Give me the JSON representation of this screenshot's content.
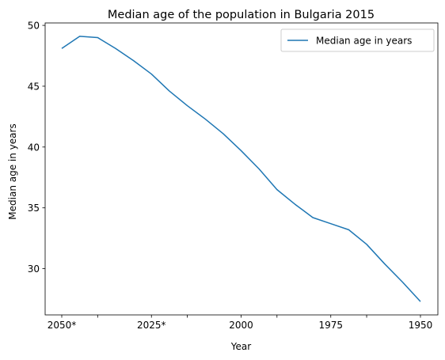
{
  "chart_data": {
    "type": "line",
    "title": "Median age of the population in Bulgaria 2015",
    "xlabel": "Year",
    "ylabel": "Median age in years",
    "x_direction": "reversed",
    "categories": [
      "2050*",
      "2045*",
      "2040*",
      "2035*",
      "2030*",
      "2025*",
      "2020*",
      "2015",
      "2010",
      "2005",
      "2000",
      "1995",
      "1990",
      "1985",
      "1980",
      "1975",
      "1970",
      "1965",
      "1960",
      "1955",
      "1950"
    ],
    "x_tick_labels": [
      {
        "category": "2050*",
        "label": "2050*"
      },
      {
        "category": "2040*",
        "label": ""
      },
      {
        "category": "2025*",
        "label": "2025*"
      },
      {
        "category": "2015",
        "label": ""
      },
      {
        "category": "2000",
        "label": "2000"
      },
      {
        "category": "1990",
        "label": ""
      },
      {
        "category": "1975",
        "label": "1975"
      },
      {
        "category": "1965",
        "label": ""
      },
      {
        "category": "1950",
        "label": "1950"
      }
    ],
    "series": [
      {
        "name": "Median age in years",
        "color": "#1f77b4",
        "values": [
          48.1,
          49.1,
          49.0,
          48.1,
          47.1,
          46.0,
          44.6,
          43.4,
          42.3,
          41.1,
          39.7,
          38.2,
          36.5,
          35.3,
          34.2,
          33.7,
          33.2,
          32.0,
          30.4,
          28.9,
          27.3
        ]
      }
    ],
    "y_ticks": [
      30,
      35,
      40,
      45,
      50
    ],
    "ylim": [
      26.2,
      50.2
    ],
    "grid": false,
    "legend": "top-right"
  }
}
